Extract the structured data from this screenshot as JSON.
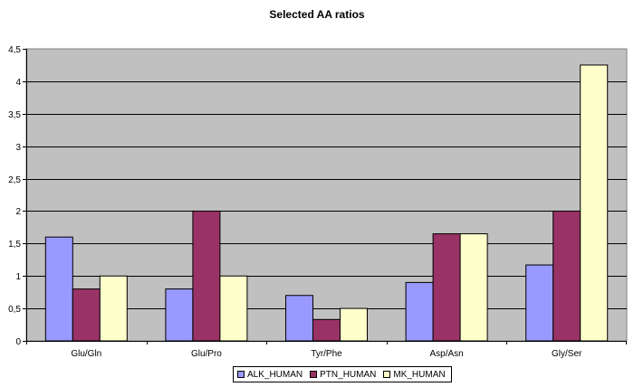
{
  "chart_data": {
    "type": "bar",
    "title": "Selected AA ratios",
    "categories": [
      "Glu/Gln",
      "Glu/Pro",
      "Tyr/Phe",
      "Asp/Asn",
      "Gly/Ser"
    ],
    "series": [
      {
        "name": "ALK_HUMAN",
        "values": [
          1.6,
          0.8,
          0.7,
          0.9,
          1.17
        ],
        "color": "#9999ff"
      },
      {
        "name": "PTN_HUMAN",
        "values": [
          0.8,
          2.0,
          0.33,
          1.65,
          2.0
        ],
        "color": "#993366"
      },
      {
        "name": "MK_HUMAN",
        "values": [
          1.0,
          1.0,
          0.5,
          1.65,
          4.25
        ],
        "color": "#ffffcc"
      }
    ],
    "ylim": [
      0,
      4.5
    ],
    "yticks": [
      "0",
      "0,5",
      "1",
      "1,5",
      "2",
      "2,5",
      "3",
      "3,5",
      "4",
      "4,5"
    ],
    "plot_background": "#c0c0c0",
    "grid": true,
    "legend_position": "bottom"
  }
}
